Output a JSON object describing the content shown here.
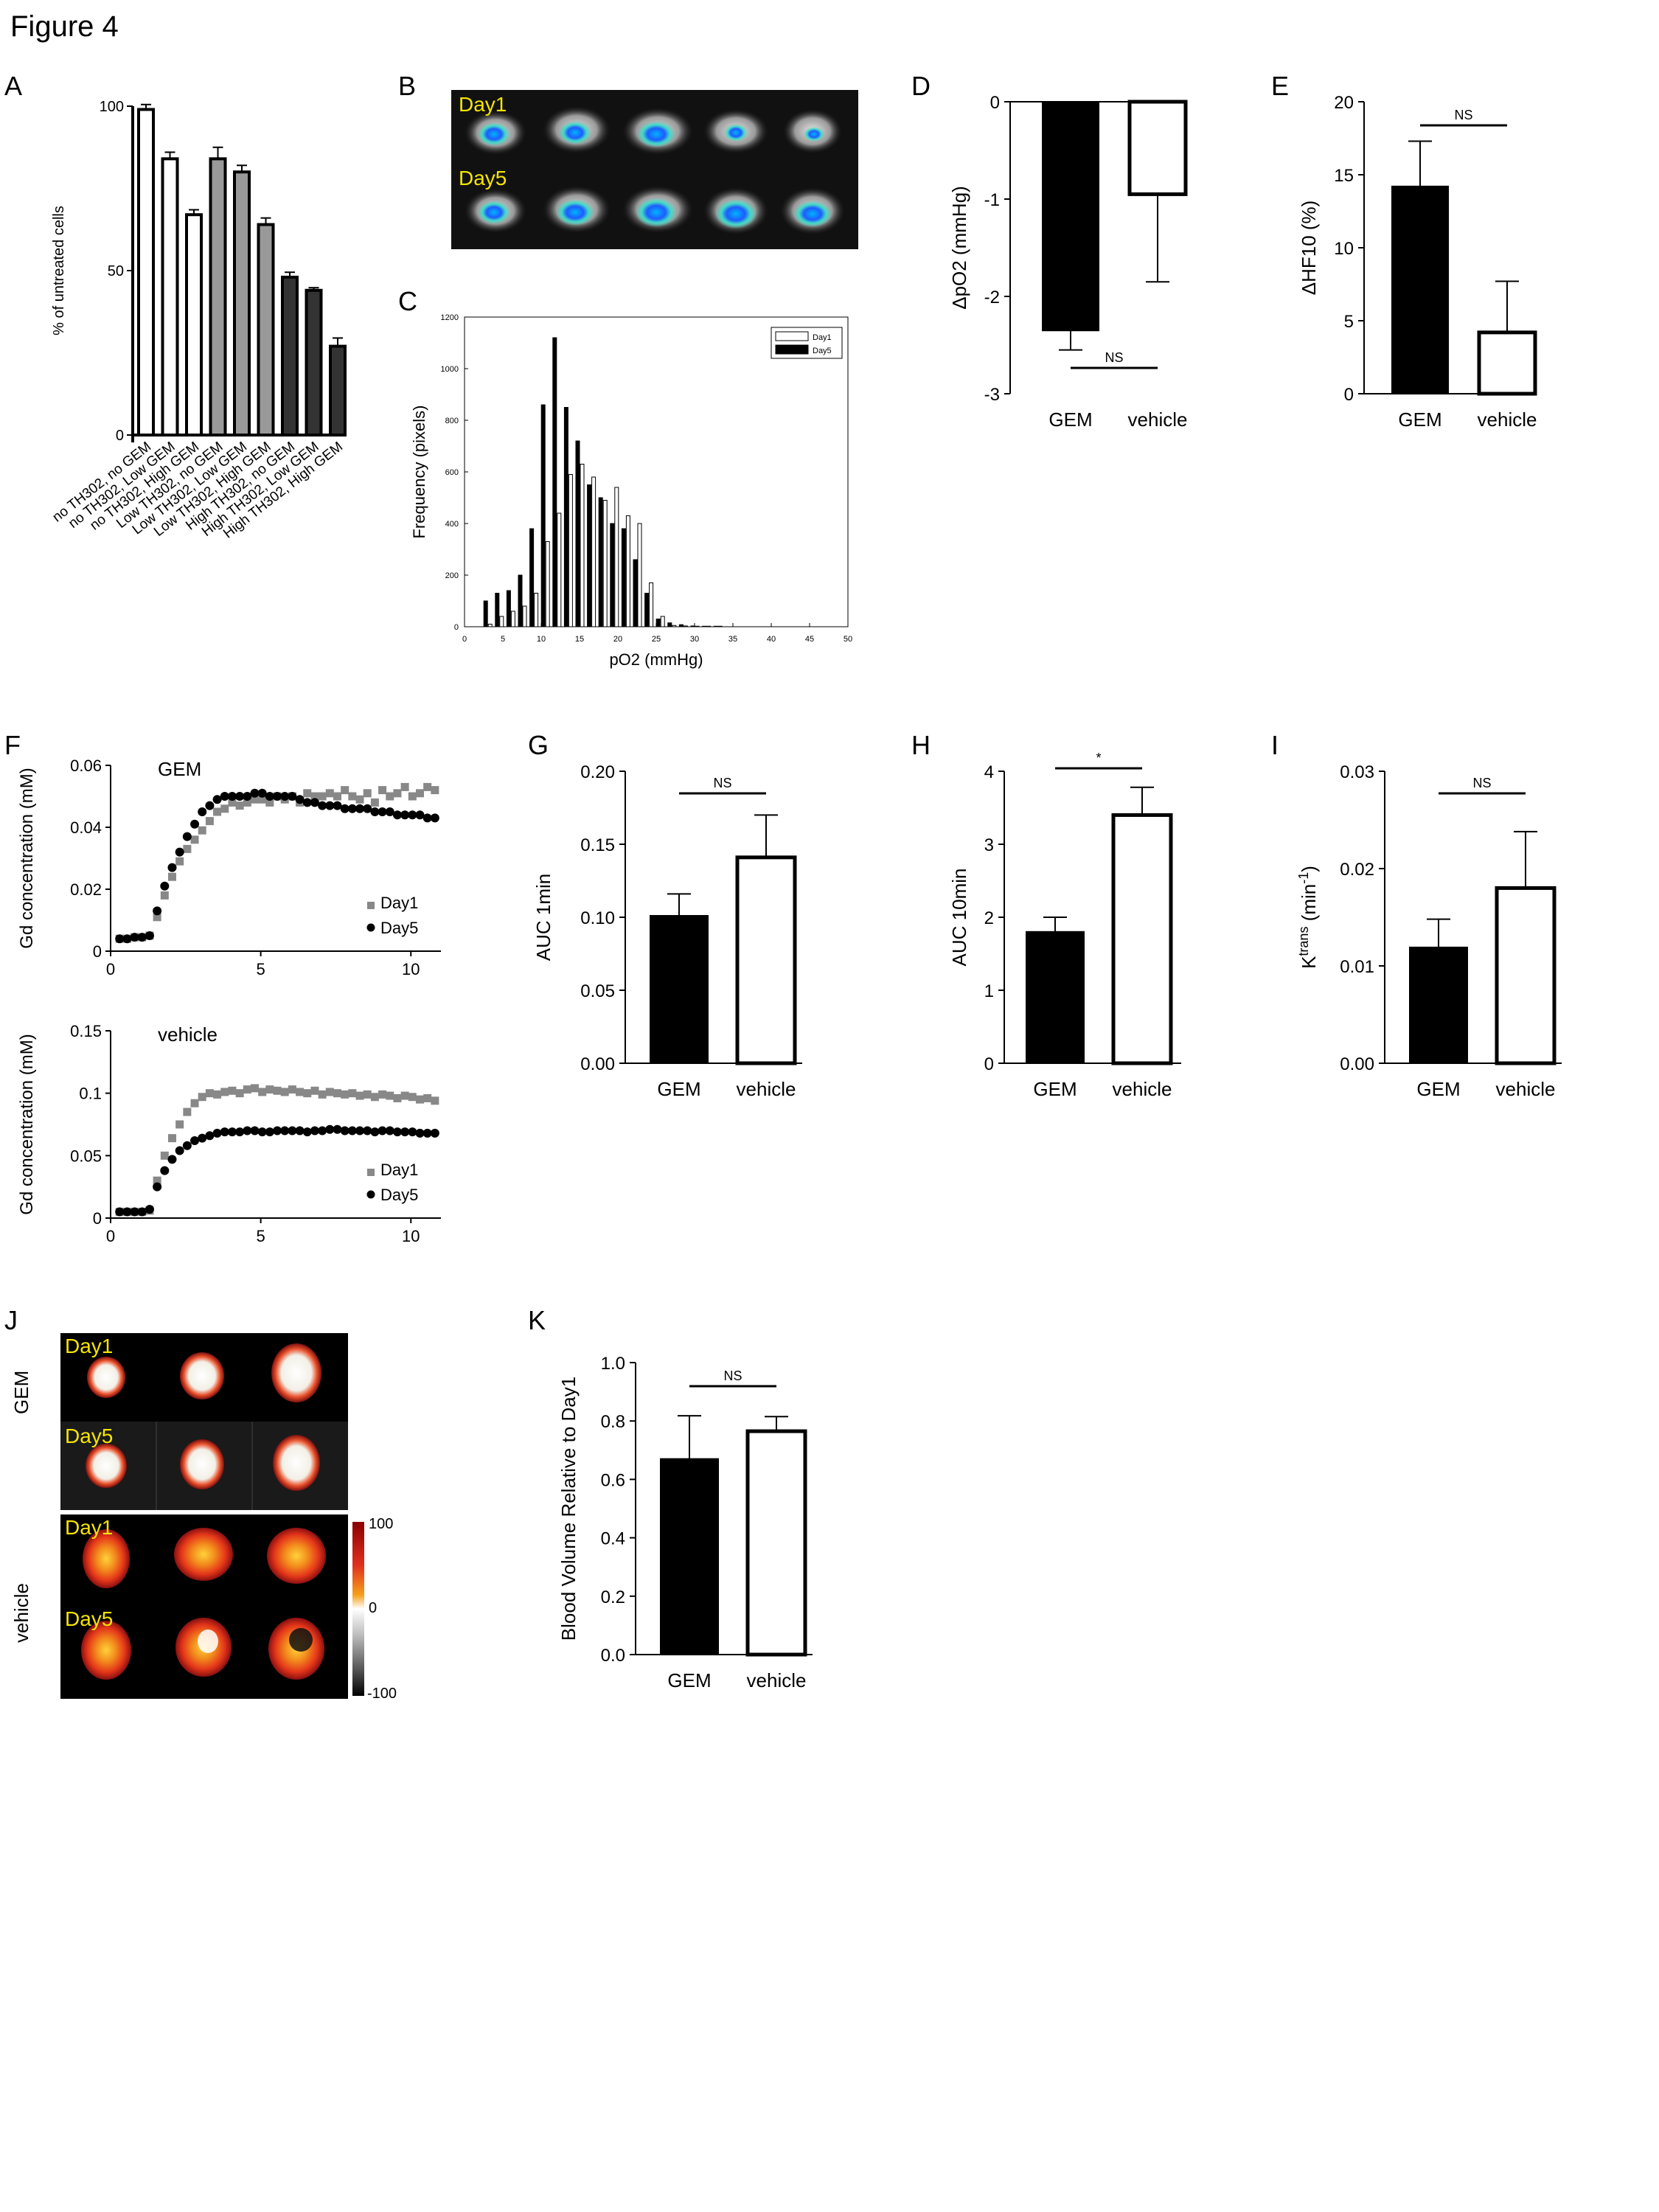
{
  "figure_title": "Figure 4",
  "panel_letters": {
    "A": "A",
    "B": "B",
    "C": "C",
    "D": "D",
    "E": "E",
    "F": "F",
    "G": "G",
    "H": "H",
    "I": "I",
    "J": "J",
    "K": "K"
  },
  "imaging": {
    "b_day1": "Day1",
    "b_day5": "Day5",
    "j_group1": "GEM",
    "j_group2": "vehicle",
    "j_day1": "Day1",
    "j_day5": "Day5",
    "j_scale_top": "100",
    "j_scale_mid": "0",
    "j_scale_bot": "-100"
  },
  "chart_data": [
    {
      "id": "A",
      "type": "bar",
      "ylabel": "% of untreated cells",
      "ylim": [
        0,
        100
      ],
      "yticks": [
        "0",
        "50",
        "100"
      ],
      "categories": [
        "no TH302, no GEM",
        "no TH302, Low GEM",
        "no TH302, High GEM",
        "Low TH302, no GEM",
        "Low TH302, Low GEM",
        "Low TH302, High GEM",
        "High TH302, no GEM",
        "High TH302, Low GEM",
        "High TH302, High GEM"
      ],
      "values": [
        99,
        84,
        67,
        84,
        80,
        64,
        48,
        44,
        27
      ],
      "errors": [
        1.5,
        2,
        1.5,
        3.5,
        2,
        2,
        1.5,
        0.8,
        2.5
      ],
      "colors": [
        "#ffffff",
        "#ffffff",
        "#ffffff",
        "#999999",
        "#999999",
        "#999999",
        "#333333",
        "#333333",
        "#333333"
      ]
    },
    {
      "id": "C",
      "type": "bar",
      "xlabel": "pO2 (mmHg)",
      "ylabel": "Frequency (pixels)",
      "xlim": [
        0,
        50
      ],
      "ylim": [
        0,
        1200
      ],
      "xticks": [
        "0",
        "5",
        "10",
        "15",
        "20",
        "25",
        "30",
        "35",
        "40",
        "45",
        "50"
      ],
      "yticks": [
        "0",
        "200",
        "400",
        "600",
        "800",
        "1000",
        "1200"
      ],
      "legend": [
        "Day1",
        "Day5"
      ],
      "bins": [
        3,
        4.5,
        6,
        7.5,
        9,
        10.5,
        12,
        13.5,
        15,
        16.5,
        18,
        19.5,
        21,
        22.5,
        24,
        25.5,
        27,
        28.5,
        30,
        31.5,
        33
      ],
      "series": [
        {
          "name": "Day1",
          "values": [
            10,
            40,
            60,
            80,
            130,
            330,
            440,
            590,
            630,
            580,
            490,
            540,
            430,
            400,
            170,
            40,
            5,
            3,
            2,
            2,
            2
          ]
        },
        {
          "name": "Day5",
          "values": [
            100,
            130,
            140,
            200,
            380,
            860,
            1120,
            850,
            720,
            550,
            500,
            400,
            380,
            260,
            130,
            30,
            15,
            8,
            3,
            2,
            2
          ]
        }
      ]
    },
    {
      "id": "D",
      "type": "bar",
      "ylabel": "ΔpO2 (mmHg)",
      "ylim": [
        -3,
        0
      ],
      "yticks": [
        "0",
        "-1",
        "-2",
        "-3"
      ],
      "categories": [
        "GEM",
        "vehicle"
      ],
      "values": [
        -2.35,
        -0.95
      ],
      "errors": [
        0.2,
        0.9
      ],
      "annotation": "NS"
    },
    {
      "id": "E",
      "type": "bar",
      "ylabel": "ΔHF10 (%)",
      "ylim": [
        0,
        20
      ],
      "yticks": [
        "0",
        "5",
        "10",
        "15",
        "20"
      ],
      "categories": [
        "GEM",
        "vehicle"
      ],
      "values": [
        14.2,
        4.2
      ],
      "errors": [
        3.1,
        3.5
      ],
      "annotation": "NS"
    },
    {
      "id": "F1",
      "type": "scatter",
      "title": "GEM",
      "ylabel": "Gd concentration (mM)",
      "xlim": [
        0,
        11
      ],
      "ylim": [
        0,
        0.06
      ],
      "xticks": [
        "0",
        "5",
        "10"
      ],
      "yticks": [
        "0",
        "0.02",
        "0.04",
        "0.06"
      ],
      "legend": [
        "Day1",
        "Day5"
      ],
      "x": [
        0.3,
        0.55,
        0.8,
        1.05,
        1.3,
        1.55,
        1.8,
        2.05,
        2.3,
        2.55,
        2.8,
        3.05,
        3.3,
        3.55,
        3.8,
        4.05,
        4.3,
        4.55,
        4.8,
        5.05,
        5.3,
        5.55,
        5.8,
        6.05,
        6.3,
        6.55,
        6.8,
        7.05,
        7.3,
        7.55,
        7.8,
        8.05,
        8.3,
        8.55,
        8.8,
        9.05,
        9.3,
        9.55,
        9.8,
        10.05,
        10.3,
        10.55,
        10.8
      ],
      "series": [
        {
          "name": "Day1",
          "values": [
            0.004,
            0.004,
            0.0045,
            0.0045,
            0.005,
            0.011,
            0.018,
            0.024,
            0.029,
            0.033,
            0.036,
            0.039,
            0.042,
            0.045,
            0.046,
            0.048,
            0.047,
            0.048,
            0.049,
            0.049,
            0.048,
            0.05,
            0.049,
            0.05,
            0.048,
            0.051,
            0.05,
            0.05,
            0.051,
            0.05,
            0.052,
            0.05,
            0.049,
            0.051,
            0.048,
            0.052,
            0.05,
            0.051,
            0.053,
            0.05,
            0.051,
            0.053,
            0.052
          ]
        },
        {
          "name": "Day5",
          "values": [
            0.004,
            0.004,
            0.0045,
            0.0045,
            0.005,
            0.013,
            0.021,
            0.027,
            0.032,
            0.037,
            0.041,
            0.045,
            0.047,
            0.049,
            0.05,
            0.05,
            0.05,
            0.05,
            0.051,
            0.051,
            0.05,
            0.05,
            0.05,
            0.05,
            0.049,
            0.048,
            0.048,
            0.047,
            0.047,
            0.047,
            0.046,
            0.046,
            0.046,
            0.046,
            0.045,
            0.045,
            0.045,
            0.044,
            0.044,
            0.044,
            0.044,
            0.043,
            0.043
          ]
        }
      ]
    },
    {
      "id": "F2",
      "type": "scatter",
      "title": "vehicle",
      "ylabel": "Gd concentration (mM)",
      "xlim": [
        0,
        11
      ],
      "ylim": [
        0,
        0.15
      ],
      "xticks": [
        "0",
        "5",
        "10"
      ],
      "yticks": [
        "0",
        "0.05",
        "0.1",
        "0.15"
      ],
      "legend": [
        "Day1",
        "Day5"
      ],
      "x": [
        0.3,
        0.55,
        0.8,
        1.05,
        1.3,
        1.55,
        1.8,
        2.05,
        2.3,
        2.55,
        2.8,
        3.05,
        3.3,
        3.55,
        3.8,
        4.05,
        4.3,
        4.55,
        4.8,
        5.05,
        5.3,
        5.55,
        5.8,
        6.05,
        6.3,
        6.55,
        6.8,
        7.05,
        7.3,
        7.55,
        7.8,
        8.05,
        8.3,
        8.55,
        8.8,
        9.05,
        9.3,
        9.55,
        9.8,
        10.05,
        10.3,
        10.55,
        10.8
      ],
      "series": [
        {
          "name": "Day1",
          "values": [
            0.005,
            0.005,
            0.005,
            0.005,
            0.006,
            0.03,
            0.05,
            0.064,
            0.075,
            0.085,
            0.092,
            0.097,
            0.1,
            0.099,
            0.101,
            0.102,
            0.1,
            0.103,
            0.104,
            0.101,
            0.103,
            0.102,
            0.101,
            0.103,
            0.101,
            0.1,
            0.102,
            0.099,
            0.101,
            0.1,
            0.099,
            0.1,
            0.098,
            0.099,
            0.097,
            0.099,
            0.098,
            0.096,
            0.098,
            0.097,
            0.095,
            0.096,
            0.094
          ]
        },
        {
          "name": "Day5",
          "values": [
            0.005,
            0.005,
            0.005,
            0.005,
            0.007,
            0.025,
            0.038,
            0.047,
            0.054,
            0.058,
            0.062,
            0.064,
            0.066,
            0.068,
            0.069,
            0.069,
            0.069,
            0.07,
            0.07,
            0.069,
            0.069,
            0.07,
            0.07,
            0.07,
            0.07,
            0.069,
            0.07,
            0.07,
            0.071,
            0.071,
            0.07,
            0.07,
            0.07,
            0.07,
            0.069,
            0.07,
            0.07,
            0.069,
            0.069,
            0.069,
            0.068,
            0.068,
            0.068
          ]
        }
      ]
    },
    {
      "id": "G",
      "type": "bar",
      "ylabel": "AUC 1min",
      "ylim": [
        0,
        0.2
      ],
      "yticks": [
        "0.00",
        "0.05",
        "0.10",
        "0.15",
        "0.20"
      ],
      "categories": [
        "GEM",
        "vehicle"
      ],
      "values": [
        0.101,
        0.141
      ],
      "errors": [
        0.015,
        0.029
      ],
      "annotation": "NS"
    },
    {
      "id": "H",
      "type": "bar",
      "ylabel": "AUC 10min",
      "ylim": [
        0,
        4
      ],
      "yticks": [
        "0",
        "1",
        "2",
        "3",
        "4"
      ],
      "categories": [
        "GEM",
        "vehicle"
      ],
      "values": [
        1.8,
        3.4
      ],
      "errors": [
        0.2,
        0.38
      ],
      "annotation": "*"
    },
    {
      "id": "I",
      "type": "bar",
      "ylabel_main": "K",
      "ylabel_sup": "trans",
      "ylabel_tail": " (min",
      "ylabel_sup2": "-1",
      "ylabel_end": ")",
      "ylim": [
        0,
        0.03
      ],
      "yticks": [
        "0.00",
        "0.01",
        "0.02",
        "0.03"
      ],
      "categories": [
        "GEM",
        "vehicle"
      ],
      "values": [
        0.0119,
        0.018
      ],
      "errors": [
        0.0029,
        0.0058
      ],
      "annotation": "NS"
    },
    {
      "id": "K",
      "type": "bar",
      "ylabel": "Blood Volume Relative to Day1",
      "ylim": [
        0,
        1
      ],
      "yticks": [
        "0.0",
        "0.2",
        "0.4",
        "0.6",
        "0.8",
        "1.0"
      ],
      "categories": [
        "GEM",
        "vehicle"
      ],
      "values": [
        0.67,
        0.765
      ],
      "errors": [
        0.148,
        0.05
      ],
      "annotation": "NS"
    }
  ]
}
